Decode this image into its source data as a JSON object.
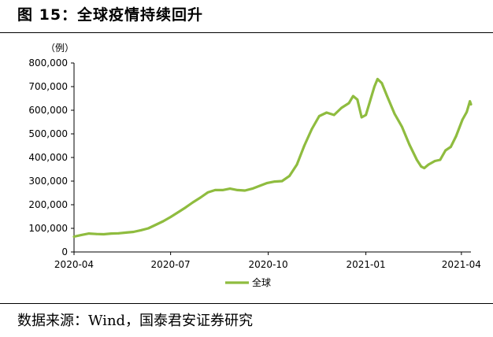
{
  "title": "图 15：全球疫情持续回升",
  "source": "数据来源：Wind，国泰君安证券研究",
  "chart_data": {
    "type": "line",
    "unit_label": "（例）",
    "ylim": [
      0,
      800000
    ],
    "y_ticks": [
      "0",
      "100,000",
      "200,000",
      "300,000",
      "400,000",
      "500,000",
      "600,000",
      "700,000",
      "800,000"
    ],
    "x_ticks": [
      "2020-04",
      "2020-07",
      "2020-10",
      "2021-01",
      "2021-04"
    ],
    "xlim": [
      "2020-04-01",
      "2021-04-10"
    ],
    "grid": false,
    "legend_position": "bottom",
    "line_color": "#8fbc3f",
    "series": [
      {
        "name": "全球",
        "points": [
          [
            "2020-04-01",
            65000
          ],
          [
            "2020-04-08",
            72000
          ],
          [
            "2020-04-15",
            78000
          ],
          [
            "2020-04-22",
            76000
          ],
          [
            "2020-04-29",
            75000
          ],
          [
            "2020-05-06",
            78000
          ],
          [
            "2020-05-13",
            79000
          ],
          [
            "2020-05-20",
            82000
          ],
          [
            "2020-05-27",
            85000
          ],
          [
            "2020-06-03",
            92000
          ],
          [
            "2020-06-10",
            100000
          ],
          [
            "2020-06-17",
            115000
          ],
          [
            "2020-06-24",
            130000
          ],
          [
            "2020-07-01",
            148000
          ],
          [
            "2020-07-08",
            168000
          ],
          [
            "2020-07-15",
            188000
          ],
          [
            "2020-07-22",
            210000
          ],
          [
            "2020-07-29",
            230000
          ],
          [
            "2020-08-05",
            252000
          ],
          [
            "2020-08-12",
            262000
          ],
          [
            "2020-08-19",
            262000
          ],
          [
            "2020-08-26",
            268000
          ],
          [
            "2020-09-02",
            262000
          ],
          [
            "2020-09-09",
            260000
          ],
          [
            "2020-09-16",
            268000
          ],
          [
            "2020-09-23",
            280000
          ],
          [
            "2020-09-30",
            292000
          ],
          [
            "2020-10-07",
            298000
          ],
          [
            "2020-10-14",
            300000
          ],
          [
            "2020-10-21",
            322000
          ],
          [
            "2020-10-28",
            370000
          ],
          [
            "2020-11-04",
            450000
          ],
          [
            "2020-11-11",
            520000
          ],
          [
            "2020-11-18",
            575000
          ],
          [
            "2020-11-25",
            590000
          ],
          [
            "2020-12-02",
            580000
          ],
          [
            "2020-12-09",
            610000
          ],
          [
            "2020-12-16",
            630000
          ],
          [
            "2020-12-20",
            660000
          ],
          [
            "2020-12-24",
            645000
          ],
          [
            "2020-12-28",
            570000
          ],
          [
            "2021-01-01",
            580000
          ],
          [
            "2021-01-05",
            640000
          ],
          [
            "2021-01-09",
            700000
          ],
          [
            "2021-01-12",
            732000
          ],
          [
            "2021-01-16",
            715000
          ],
          [
            "2021-01-21",
            660000
          ],
          [
            "2021-01-28",
            585000
          ],
          [
            "2021-02-04",
            530000
          ],
          [
            "2021-02-11",
            455000
          ],
          [
            "2021-02-18",
            390000
          ],
          [
            "2021-02-22",
            362000
          ],
          [
            "2021-02-25",
            355000
          ],
          [
            "2021-03-01",
            370000
          ],
          [
            "2021-03-07",
            385000
          ],
          [
            "2021-03-12",
            390000
          ],
          [
            "2021-03-17",
            430000
          ],
          [
            "2021-03-22",
            445000
          ],
          [
            "2021-03-27",
            490000
          ],
          [
            "2021-04-02",
            560000
          ],
          [
            "2021-04-06",
            592000
          ],
          [
            "2021-04-09",
            638000
          ],
          [
            "2021-04-10",
            625000
          ]
        ]
      }
    ]
  }
}
